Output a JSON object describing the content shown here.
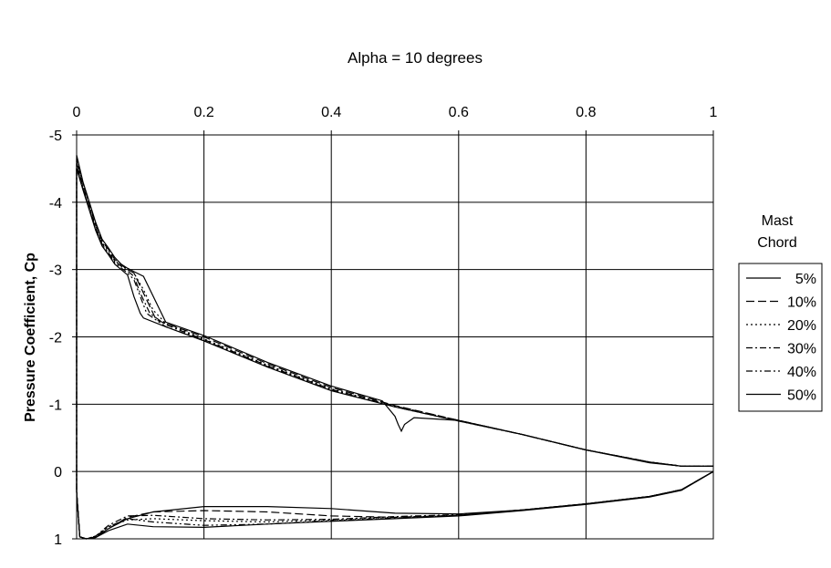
{
  "chart_data": {
    "type": "line",
    "title": "Alpha = 10 degrees",
    "xlabel": "",
    "ylabel": "Pressure Coefficient, Cp",
    "xlim": [
      0,
      1
    ],
    "ylim": [
      -5,
      1
    ],
    "y_inverted": true,
    "x_axis_position": "top",
    "x_ticks": [
      "0",
      "0.2",
      "0.4",
      "0.6",
      "0.8",
      "1"
    ],
    "y_ticks": [
      "-5",
      "-4",
      "-3",
      "-2",
      "-1",
      "0",
      "1"
    ],
    "grid": true,
    "legend": {
      "title_lines": [
        "Mast",
        "Chord"
      ],
      "placement": "right",
      "entries": [
        "5%",
        "10%",
        "20%",
        "30%",
        "40%",
        "50%"
      ]
    },
    "series": [
      {
        "name": "5%",
        "dash": "solid",
        "upper": [
          [
            0.0,
            -4.7
          ],
          [
            0.01,
            -4.3
          ],
          [
            0.02,
            -4.0
          ],
          [
            0.03,
            -3.7
          ],
          [
            0.04,
            -3.45
          ],
          [
            0.05,
            -3.32
          ],
          [
            0.06,
            -3.18
          ],
          [
            0.07,
            -3.08
          ],
          [
            0.08,
            -3.02
          ],
          [
            0.09,
            -2.97
          ],
          [
            0.105,
            -2.9
          ],
          [
            0.14,
            -2.22
          ],
          [
            0.2,
            -2.02
          ],
          [
            0.3,
            -1.62
          ],
          [
            0.4,
            -1.27
          ],
          [
            0.48,
            -1.05
          ],
          [
            0.5,
            -0.82
          ],
          [
            0.505,
            -0.7
          ],
          [
            0.51,
            -0.6
          ],
          [
            0.515,
            -0.7
          ],
          [
            0.53,
            -0.8
          ],
          [
            0.6,
            -0.76
          ],
          [
            0.7,
            -0.55
          ],
          [
            0.8,
            -0.32
          ],
          [
            0.9,
            -0.13
          ],
          [
            0.95,
            -0.08
          ],
          [
            1.0,
            -0.08
          ]
        ],
        "lower": [
          [
            0.0,
            0.3
          ],
          [
            0.005,
            0.97
          ],
          [
            0.015,
            1.0
          ],
          [
            0.03,
            0.98
          ],
          [
            0.05,
            0.85
          ],
          [
            0.08,
            0.7
          ],
          [
            0.12,
            0.6
          ],
          [
            0.2,
            0.52
          ],
          [
            0.3,
            0.52
          ],
          [
            0.4,
            0.55
          ],
          [
            0.5,
            0.62
          ],
          [
            0.6,
            0.63
          ],
          [
            0.7,
            0.57
          ],
          [
            0.8,
            0.48
          ],
          [
            0.9,
            0.37
          ],
          [
            0.95,
            0.27
          ],
          [
            1.0,
            0.0
          ]
        ]
      },
      {
        "name": "10%",
        "dash": "long",
        "upper": [
          [
            0.0,
            -4.65
          ],
          [
            0.01,
            -4.28
          ],
          [
            0.02,
            -3.98
          ],
          [
            0.03,
            -3.68
          ],
          [
            0.04,
            -3.42
          ],
          [
            0.05,
            -3.3
          ],
          [
            0.06,
            -3.15
          ],
          [
            0.08,
            -3.0
          ],
          [
            0.09,
            -2.95
          ],
          [
            0.1,
            -2.75
          ],
          [
            0.11,
            -2.55
          ],
          [
            0.125,
            -2.25
          ],
          [
            0.14,
            -2.2
          ],
          [
            0.2,
            -2.0
          ],
          [
            0.3,
            -1.6
          ],
          [
            0.4,
            -1.25
          ],
          [
            0.5,
            -0.98
          ],
          [
            0.6,
            -0.76
          ],
          [
            0.7,
            -0.55
          ],
          [
            0.8,
            -0.32
          ],
          [
            0.9,
            -0.14
          ],
          [
            0.95,
            -0.08
          ],
          [
            1.0,
            -0.08
          ]
        ],
        "lower": [
          [
            0.0,
            0.3
          ],
          [
            0.005,
            0.97
          ],
          [
            0.015,
            1.0
          ],
          [
            0.03,
            0.97
          ],
          [
            0.05,
            0.85
          ],
          [
            0.08,
            0.68
          ],
          [
            0.12,
            0.6
          ],
          [
            0.2,
            0.58
          ],
          [
            0.3,
            0.6
          ],
          [
            0.4,
            0.66
          ],
          [
            0.5,
            0.68
          ],
          [
            0.6,
            0.65
          ],
          [
            0.7,
            0.57
          ],
          [
            0.8,
            0.48
          ],
          [
            0.9,
            0.37
          ],
          [
            0.95,
            0.27
          ],
          [
            1.0,
            0.0
          ]
        ]
      },
      {
        "name": "20%",
        "dash": "dot",
        "upper": [
          [
            0.0,
            -4.6
          ],
          [
            0.01,
            -4.25
          ],
          [
            0.02,
            -3.95
          ],
          [
            0.03,
            -3.65
          ],
          [
            0.04,
            -3.4
          ],
          [
            0.05,
            -3.28
          ],
          [
            0.06,
            -3.13
          ],
          [
            0.08,
            -3.0
          ],
          [
            0.09,
            -2.95
          ],
          [
            0.105,
            -2.7
          ],
          [
            0.12,
            -2.4
          ],
          [
            0.14,
            -2.2
          ],
          [
            0.2,
            -1.97
          ],
          [
            0.3,
            -1.58
          ],
          [
            0.4,
            -1.23
          ],
          [
            0.5,
            -0.97
          ],
          [
            0.6,
            -0.76
          ],
          [
            0.7,
            -0.55
          ],
          [
            0.8,
            -0.32
          ],
          [
            0.9,
            -0.14
          ],
          [
            0.95,
            -0.08
          ],
          [
            1.0,
            -0.08
          ]
        ],
        "lower": [
          [
            0.0,
            0.3
          ],
          [
            0.005,
            0.97
          ],
          [
            0.015,
            1.0
          ],
          [
            0.03,
            0.96
          ],
          [
            0.05,
            0.82
          ],
          [
            0.08,
            0.72
          ],
          [
            0.12,
            0.7
          ],
          [
            0.2,
            0.73
          ],
          [
            0.3,
            0.75
          ],
          [
            0.4,
            0.72
          ],
          [
            0.5,
            0.68
          ],
          [
            0.6,
            0.65
          ],
          [
            0.7,
            0.57
          ],
          [
            0.8,
            0.48
          ],
          [
            0.9,
            0.37
          ],
          [
            0.95,
            0.27
          ],
          [
            1.0,
            0.0
          ]
        ]
      },
      {
        "name": "30%",
        "dash": "dashdot",
        "upper": [
          [
            0.0,
            -4.6
          ],
          [
            0.01,
            -4.22
          ],
          [
            0.02,
            -3.92
          ],
          [
            0.03,
            -3.62
          ],
          [
            0.04,
            -3.38
          ],
          [
            0.05,
            -3.25
          ],
          [
            0.06,
            -3.12
          ],
          [
            0.08,
            -2.98
          ],
          [
            0.09,
            -2.9
          ],
          [
            0.1,
            -2.65
          ],
          [
            0.115,
            -2.35
          ],
          [
            0.14,
            -2.18
          ],
          [
            0.2,
            -1.96
          ],
          [
            0.3,
            -1.57
          ],
          [
            0.4,
            -1.22
          ],
          [
            0.5,
            -0.97
          ],
          [
            0.6,
            -0.76
          ],
          [
            0.7,
            -0.55
          ],
          [
            0.8,
            -0.32
          ],
          [
            0.9,
            -0.14
          ],
          [
            0.95,
            -0.08
          ],
          [
            1.0,
            -0.08
          ]
        ],
        "lower": [
          [
            0.0,
            0.3
          ],
          [
            0.005,
            0.97
          ],
          [
            0.015,
            1.0
          ],
          [
            0.03,
            0.96
          ],
          [
            0.05,
            0.8
          ],
          [
            0.08,
            0.66
          ],
          [
            0.12,
            0.65
          ],
          [
            0.2,
            0.7
          ],
          [
            0.3,
            0.72
          ],
          [
            0.4,
            0.71
          ],
          [
            0.5,
            0.67
          ],
          [
            0.6,
            0.64
          ],
          [
            0.7,
            0.57
          ],
          [
            0.8,
            0.48
          ],
          [
            0.9,
            0.37
          ],
          [
            0.95,
            0.27
          ],
          [
            1.0,
            0.0
          ]
        ]
      },
      {
        "name": "40%",
        "dash": "dashdotdot",
        "upper": [
          [
            0.0,
            -4.55
          ],
          [
            0.01,
            -4.2
          ],
          [
            0.02,
            -3.9
          ],
          [
            0.03,
            -3.6
          ],
          [
            0.04,
            -3.36
          ],
          [
            0.05,
            -3.23
          ],
          [
            0.06,
            -3.1
          ],
          [
            0.08,
            -2.95
          ],
          [
            0.09,
            -2.85
          ],
          [
            0.1,
            -2.6
          ],
          [
            0.11,
            -2.35
          ],
          [
            0.14,
            -2.15
          ],
          [
            0.2,
            -1.95
          ],
          [
            0.3,
            -1.56
          ],
          [
            0.4,
            -1.21
          ],
          [
            0.5,
            -0.96
          ],
          [
            0.6,
            -0.75
          ],
          [
            0.7,
            -0.55
          ],
          [
            0.8,
            -0.32
          ],
          [
            0.9,
            -0.14
          ],
          [
            0.95,
            -0.08
          ],
          [
            1.0,
            -0.08
          ]
        ],
        "lower": [
          [
            0.0,
            0.3
          ],
          [
            0.005,
            0.97
          ],
          [
            0.015,
            1.0
          ],
          [
            0.03,
            0.97
          ],
          [
            0.05,
            0.82
          ],
          [
            0.08,
            0.7
          ],
          [
            0.12,
            0.75
          ],
          [
            0.2,
            0.8
          ],
          [
            0.3,
            0.78
          ],
          [
            0.4,
            0.73
          ],
          [
            0.5,
            0.69
          ],
          [
            0.6,
            0.65
          ],
          [
            0.7,
            0.57
          ],
          [
            0.8,
            0.48
          ],
          [
            0.9,
            0.37
          ],
          [
            0.95,
            0.27
          ],
          [
            1.0,
            0.0
          ]
        ]
      },
      {
        "name": "50%",
        "dash": "solid",
        "upper": [
          [
            0.0,
            -4.5
          ],
          [
            0.01,
            -4.18
          ],
          [
            0.02,
            -3.88
          ],
          [
            0.03,
            -3.58
          ],
          [
            0.04,
            -3.35
          ],
          [
            0.05,
            -3.22
          ],
          [
            0.06,
            -3.08
          ],
          [
            0.08,
            -2.92
          ],
          [
            0.09,
            -2.6
          ],
          [
            0.1,
            -2.35
          ],
          [
            0.105,
            -2.28
          ],
          [
            0.14,
            -2.15
          ],
          [
            0.2,
            -1.94
          ],
          [
            0.3,
            -1.55
          ],
          [
            0.4,
            -1.2
          ],
          [
            0.5,
            -0.96
          ],
          [
            0.6,
            -0.75
          ],
          [
            0.7,
            -0.55
          ],
          [
            0.8,
            -0.32
          ],
          [
            0.9,
            -0.14
          ],
          [
            0.95,
            -0.08
          ],
          [
            1.0,
            -0.08
          ]
        ],
        "lower": [
          [
            0.0,
            0.3
          ],
          [
            0.005,
            0.97
          ],
          [
            0.015,
            1.0
          ],
          [
            0.03,
            0.98
          ],
          [
            0.05,
            0.88
          ],
          [
            0.08,
            0.78
          ],
          [
            0.12,
            0.82
          ],
          [
            0.2,
            0.83
          ],
          [
            0.3,
            0.78
          ],
          [
            0.4,
            0.74
          ],
          [
            0.5,
            0.7
          ],
          [
            0.6,
            0.66
          ],
          [
            0.7,
            0.58
          ],
          [
            0.8,
            0.49
          ],
          [
            0.9,
            0.38
          ],
          [
            0.95,
            0.28
          ],
          [
            1.0,
            0.0
          ]
        ]
      }
    ]
  }
}
